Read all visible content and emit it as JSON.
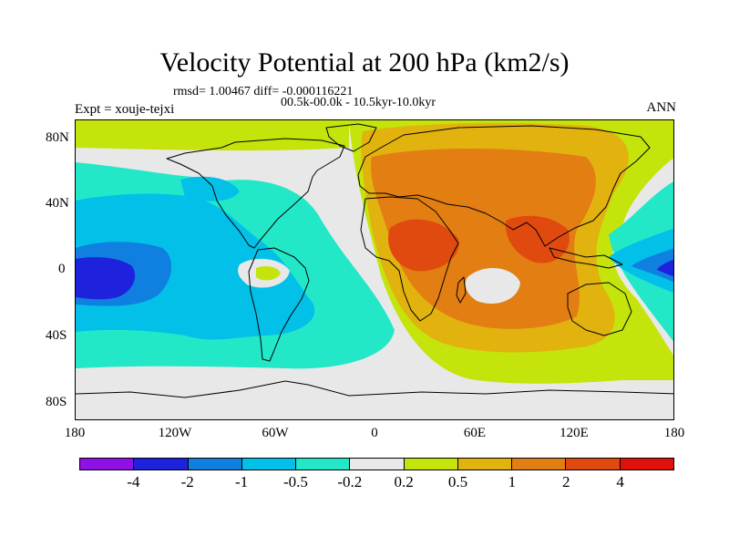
{
  "header": {
    "title": "Velocity Potential at 200 hPa (km2/s)",
    "stats": "rmsd= 1.00467 diff= -0.000116221",
    "period": "00.5k-00.0k - 10.5kyr-10.0kyr",
    "experiment": "Expt = xouje-tejxi",
    "season": "ANN"
  },
  "axes": {
    "lat_labels": [
      "80N",
      "40N",
      "0",
      "40S",
      "80S"
    ],
    "lon_labels": [
      "180",
      "120W",
      "60W",
      "0",
      "60E",
      "120E",
      "180"
    ]
  },
  "colorbar": {
    "colors": [
      "#8f11e6",
      "#1e22dc",
      "#0f7fe0",
      "#02c0e8",
      "#23e8c8",
      "#e8e8e8",
      "#c4e40c",
      "#e2b20e",
      "#e27e12",
      "#e04a0e",
      "#e2100a"
    ],
    "labels": [
      "-4",
      "-2",
      "-1",
      "-0.5",
      "-0.2",
      "0.2",
      "0.5",
      "1",
      "2",
      "4"
    ]
  }
}
